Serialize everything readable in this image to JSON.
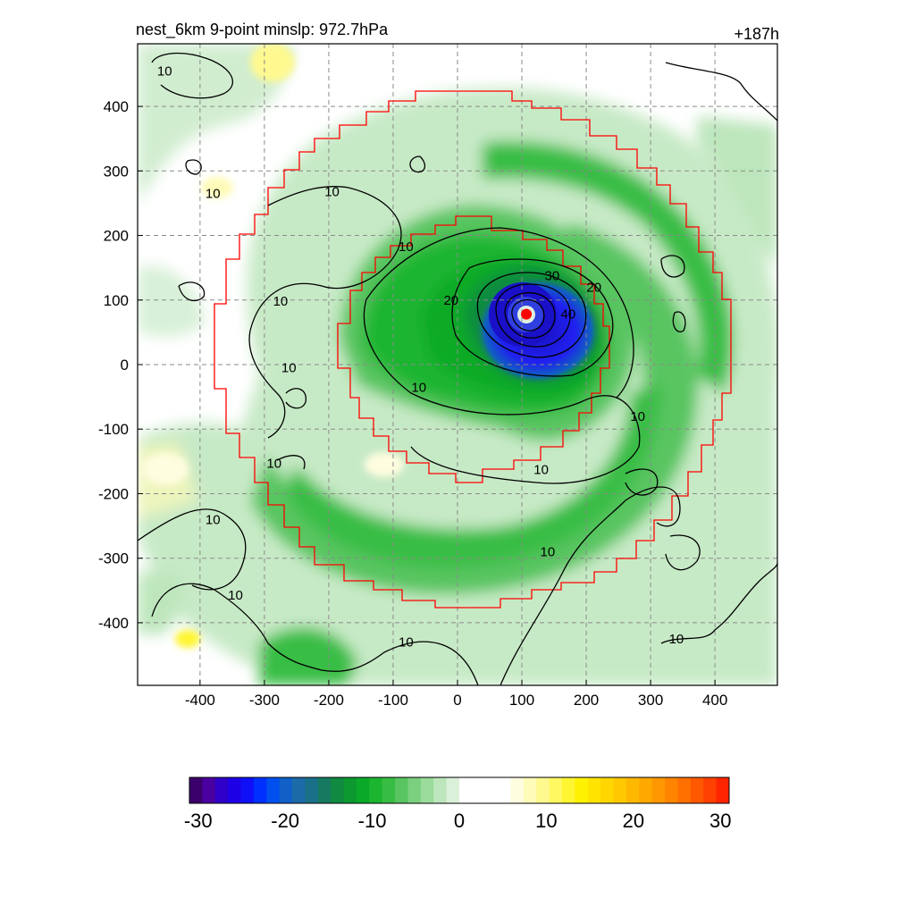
{
  "chart_data": {
    "type": "contour",
    "title_left": "nest_6km  9-point minslp: 972.7hPa",
    "title_right": "+187h",
    "x_ticks": [
      -400,
      -300,
      -200,
      -100,
      0,
      100,
      200,
      300,
      400
    ],
    "y_ticks": [
      400,
      300,
      200,
      100,
      0,
      -100,
      -200,
      -300,
      -400
    ],
    "xlim": [
      -497,
      497
    ],
    "ylim": [
      -497,
      497
    ],
    "grid": true,
    "storm_center": [
      107,
      78
    ],
    "wind_contour_levels": [
      "10",
      "20",
      "30",
      "40"
    ],
    "contour_labels": [
      {
        "x": -455,
        "y": 455,
        "text": "10"
      },
      {
        "x": -380,
        "y": 265,
        "text": "10"
      },
      {
        "x": -195,
        "y": 268,
        "text": "10"
      },
      {
        "x": -275,
        "y": 98,
        "text": "10"
      },
      {
        "x": -262,
        "y": -5,
        "text": "10"
      },
      {
        "x": -285,
        "y": -153,
        "text": "10"
      },
      {
        "x": -380,
        "y": -240,
        "text": "10"
      },
      {
        "x": -345,
        "y": -357,
        "text": "10"
      },
      {
        "x": -80,
        "y": 183,
        "text": "10"
      },
      {
        "x": -60,
        "y": -35,
        "text": "10"
      },
      {
        "x": 130,
        "y": -163,
        "text": "10"
      },
      {
        "x": 280,
        "y": -80,
        "text": "10"
      },
      {
        "x": 140,
        "y": -290,
        "text": "10"
      },
      {
        "x": -80,
        "y": -430,
        "text": "10"
      },
      {
        "x": 340,
        "y": -425,
        "text": "10"
      },
      {
        "x": -10,
        "y": 100,
        "text": "20"
      },
      {
        "x": 212,
        "y": 120,
        "text": "20"
      },
      {
        "x": 147,
        "y": 138,
        "text": "30"
      },
      {
        "x": 172,
        "y": 78,
        "text": "40"
      }
    ],
    "colorbar": {
      "ticks": [
        -30,
        -20,
        -10,
        0,
        10,
        20,
        30
      ],
      "range": [
        -31,
        31
      ],
      "colors": [
        "#3b006b",
        "#4a00a0",
        "#2e00c8",
        "#1e00e6",
        "#0f10f8",
        "#0030ff",
        "#0050f0",
        "#1060c8",
        "#1c6aa8",
        "#1a7088",
        "#157a60",
        "#108a40",
        "#0c9a30",
        "#0aaa28",
        "#1bb530",
        "#38bd44",
        "#58c560",
        "#7ad07e",
        "#9bdb9b",
        "#bde6bc",
        "#daf0d8",
        "#ffffff",
        "#ffffff",
        "#ffffff",
        "#ffffff",
        "#fffde0",
        "#fffbb8",
        "#fff990",
        "#fff860",
        "#fff530",
        "#fff200",
        "#ffe400",
        "#ffd600",
        "#ffc800",
        "#ffb800",
        "#ffa800",
        "#ff9800",
        "#ff8400",
        "#ff7000",
        "#ff5800",
        "#ff4000",
        "#ff2400"
      ]
    }
  }
}
